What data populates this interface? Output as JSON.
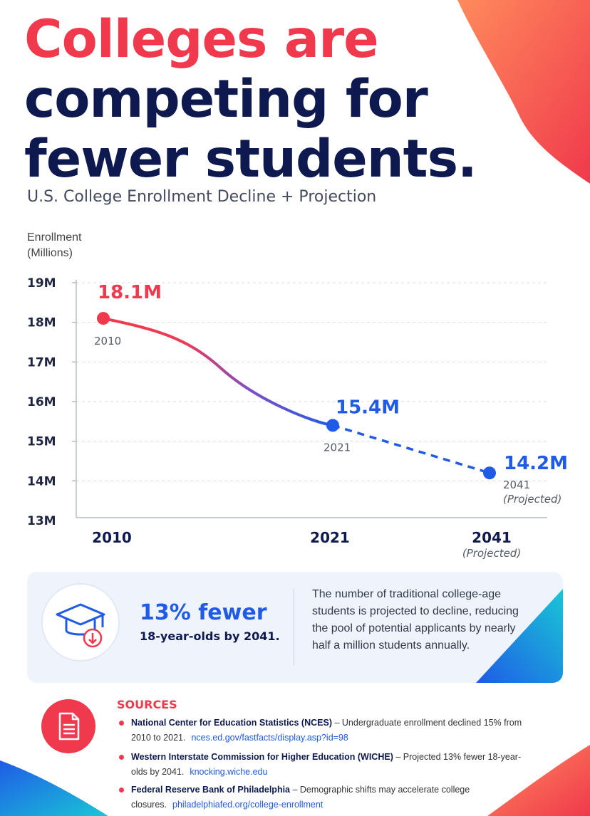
{
  "headline": {
    "line1": "Colleges are",
    "line2": "competing for",
    "line3": "fewer students."
  },
  "subtitle": "U.S. College Enrollment Decline + Projection",
  "colors": {
    "red": "#f0394c",
    "blue": "#1f5be6",
    "navy": "#0e1a4f"
  },
  "chart_data": {
    "type": "line",
    "ylabel_line1": "Enrollment",
    "ylabel_line2": "(Millions)",
    "ylim": [
      13,
      19
    ],
    "yticks": [
      "19M",
      "18M",
      "17M",
      "16M",
      "15M",
      "14M",
      "13M"
    ],
    "grid": true,
    "x_categories": [
      {
        "label": "2010",
        "sub": ""
      },
      {
        "label": "2021",
        "sub": ""
      },
      {
        "label": "2041",
        "sub": "(Projected)"
      }
    ],
    "points": [
      {
        "year": "2010",
        "value": 18.1,
        "label": "18.1M",
        "year_label": "2010",
        "projected_label": ""
      },
      {
        "year": "2021",
        "value": 15.4,
        "label": "15.4M",
        "year_label": "2021",
        "projected_label": ""
      },
      {
        "year": "2041",
        "value": 14.2,
        "label": "14.2M",
        "year_label": "2041",
        "projected_label": "(Projected)"
      }
    ]
  },
  "info": {
    "icon": "graduation-cap-down-icon",
    "big": "13% fewer",
    "sub": "18-year-olds by 2041.",
    "text": "The number of traditional college-age students is projected to decline, reducing the pool of potential applicants by nearly half a million students annually."
  },
  "sources": {
    "icon": "document-icon",
    "title": "SOURCES",
    "items": [
      {
        "name": "National Center for Education Statistics (NCES)",
        "desc": " – Undergraduate enrollment declined 15% from 2010 to 2021.",
        "link": "nces.ed.gov/fastfacts/display.asp?id=98"
      },
      {
        "name": "Western Interstate Commission for Higher Education (WICHE)",
        "desc": " – Projected 13% fewer 18-year-olds by 2041.",
        "link": "knocking.wiche.edu"
      },
      {
        "name": "Federal Reserve Bank of Philadelphia",
        "desc": " – Demographic shifts may accelerate college closures.",
        "link": "philadelphiafed.org/college-enrollment"
      }
    ]
  }
}
